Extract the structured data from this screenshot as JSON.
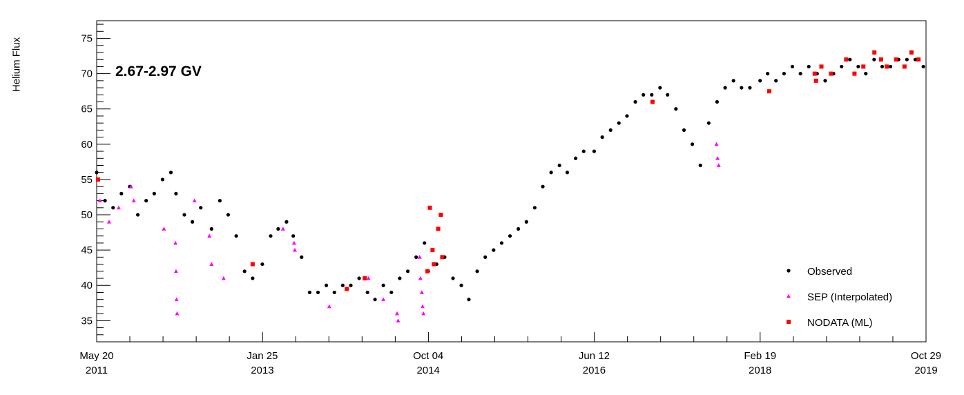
{
  "chart_data": {
    "type": "scatter",
    "title": "",
    "xlabel": "",
    "ylabel": "Helium Flux",
    "annotation": "2.67-2.97 GV",
    "xlim": [
      "2011-05-20",
      "2019-10-29"
    ],
    "ylim": [
      32,
      77.5
    ],
    "y_ticks": [
      35,
      40,
      45,
      50,
      55,
      60,
      65,
      70,
      75
    ],
    "x_ticks": [
      {
        "date": "2011-05-20",
        "line1": "May 20",
        "line2": "2011"
      },
      {
        "date": "2013-01-25",
        "line1": "Jan 25",
        "line2": "2013"
      },
      {
        "date": "2014-10-04",
        "line1": "Oct 04",
        "line2": "2014"
      },
      {
        "date": "2016-06-12",
        "line1": "Jun 12",
        "line2": "2016"
      },
      {
        "date": "2018-02-19",
        "line1": "Feb 19",
        "line2": "2018"
      },
      {
        "date": "2019-10-29",
        "line1": "Oct 29",
        "line2": "2019"
      }
    ],
    "grid": false,
    "legend_position": "bottom-right",
    "series": [
      {
        "name": "Observed",
        "marker": "circle",
        "color": "#000000",
        "x": [
          "2011-05-20",
          "2011-06-20",
          "2011-07-20",
          "2011-08-20",
          "2011-09-20",
          "2011-10-20",
          "2011-11-20",
          "2011-12-20",
          "2012-01-20",
          "2012-02-20",
          "2012-03-10",
          "2012-04-10",
          "2012-05-10",
          "2012-06-10",
          "2012-07-20",
          "2012-08-20",
          "2012-09-20",
          "2012-10-20",
          "2012-11-20",
          "2012-12-20",
          "2013-01-25",
          "2013-02-25",
          "2013-03-25",
          "2013-04-25",
          "2013-05-20",
          "2013-06-20",
          "2013-07-20",
          "2013-08-20",
          "2013-09-20",
          "2013-10-20",
          "2013-11-20",
          "2013-12-20",
          "2014-01-20",
          "2014-02-20",
          "2014-03-20",
          "2014-04-20",
          "2014-05-20",
          "2014-06-20",
          "2014-07-20",
          "2014-08-20",
          "2014-09-20",
          "2014-10-04",
          "2014-11-04",
          "2014-12-04",
          "2015-01-04",
          "2015-02-04",
          "2015-03-04",
          "2015-04-04",
          "2015-05-04",
          "2015-06-04",
          "2015-07-04",
          "2015-08-04",
          "2015-09-04",
          "2015-10-04",
          "2015-11-04",
          "2015-12-04",
          "2016-01-04",
          "2016-02-04",
          "2016-03-04",
          "2016-04-04",
          "2016-05-04",
          "2016-06-12",
          "2016-07-12",
          "2016-08-12",
          "2016-09-12",
          "2016-10-12",
          "2016-11-12",
          "2016-12-12",
          "2017-01-12",
          "2017-02-12",
          "2017-03-12",
          "2017-04-12",
          "2017-05-12",
          "2017-06-12",
          "2017-07-12",
          "2017-08-12",
          "2017-09-12",
          "2017-10-12",
          "2017-11-12",
          "2017-12-12",
          "2018-01-12",
          "2018-02-19",
          "2018-03-19",
          "2018-04-19",
          "2018-05-19",
          "2018-06-19",
          "2018-07-19",
          "2018-08-19",
          "2018-09-19",
          "2018-10-19",
          "2018-11-19",
          "2018-12-19",
          "2019-01-19",
          "2019-02-19",
          "2019-03-19",
          "2019-04-19",
          "2019-05-19",
          "2019-06-19",
          "2019-07-19",
          "2019-08-19",
          "2019-09-19",
          "2019-10-19"
        ],
        "y": [
          56,
          52,
          51,
          53,
          54,
          50,
          52,
          53,
          55,
          56,
          53,
          50,
          49,
          51,
          48,
          52,
          50,
          47,
          42,
          41,
          43,
          47,
          48,
          49,
          47,
          44,
          39,
          39,
          40,
          39,
          40,
          40,
          41,
          39,
          38,
          40,
          39,
          41,
          42,
          44,
          46,
          42,
          43,
          44,
          41,
          40,
          38,
          42,
          44,
          45,
          46,
          47,
          48,
          49,
          51,
          54,
          56,
          57,
          56,
          58,
          59,
          59,
          61,
          62,
          63,
          64,
          66,
          67,
          67,
          68,
          67,
          65,
          62,
          60,
          57,
          63,
          66,
          68,
          69,
          68,
          68,
          69,
          70,
          69,
          70,
          71,
          70,
          71,
          70,
          69,
          70,
          71,
          72,
          71,
          70,
          72,
          71,
          71,
          72,
          72,
          72,
          71
        ]
      },
      {
        "name": "SEP (Interpolated)",
        "marker": "triangle",
        "color": "#ff00ff",
        "x": [
          "2011-06-01",
          "2011-07-05",
          "2011-08-10",
          "2011-09-25",
          "2011-10-05",
          "2012-01-25",
          "2012-03-08",
          "2012-03-10",
          "2012-03-12",
          "2012-03-14",
          "2012-05-18",
          "2012-07-12",
          "2012-07-20",
          "2012-09-03",
          "2013-04-12",
          "2013-05-23",
          "2013-05-26",
          "2013-10-01",
          "2014-02-24",
          "2014-04-20",
          "2014-06-10",
          "2014-06-14",
          "2014-09-02",
          "2014-09-05",
          "2014-09-10",
          "2014-09-13",
          "2014-09-16",
          "2017-09-10",
          "2017-09-14",
          "2017-09-18"
        ],
        "y": [
          52,
          49,
          51,
          54,
          52,
          48,
          46,
          42,
          38,
          36,
          52,
          47,
          43,
          41,
          48,
          46,
          45,
          37,
          41,
          38,
          36,
          35,
          44,
          41,
          39,
          37,
          36,
          60,
          58,
          57
        ]
      },
      {
        "name": "NODATA (ML)",
        "marker": "square",
        "color": "#ff0000",
        "x": [
          "2011-05-25",
          "2012-12-20",
          "2013-12-05",
          "2014-02-10",
          "2014-10-01",
          "2014-10-10",
          "2014-10-20",
          "2014-10-25",
          "2014-11-10",
          "2014-11-20",
          "2014-11-25",
          "2017-01-15",
          "2018-03-25",
          "2018-09-10",
          "2018-09-15",
          "2018-10-05",
          "2018-11-10",
          "2019-01-05",
          "2019-02-05",
          "2019-03-10",
          "2019-04-20",
          "2019-05-15",
          "2019-06-05",
          "2019-07-10",
          "2019-08-10",
          "2019-09-05",
          "2019-10-01"
        ],
        "y": [
          55,
          43,
          39.5,
          41,
          42,
          51,
          45,
          43,
          48,
          50,
          44,
          66,
          67.5,
          70,
          69,
          71,
          70,
          72,
          70,
          71,
          73,
          72,
          71,
          72,
          71,
          73,
          72
        ]
      }
    ]
  }
}
